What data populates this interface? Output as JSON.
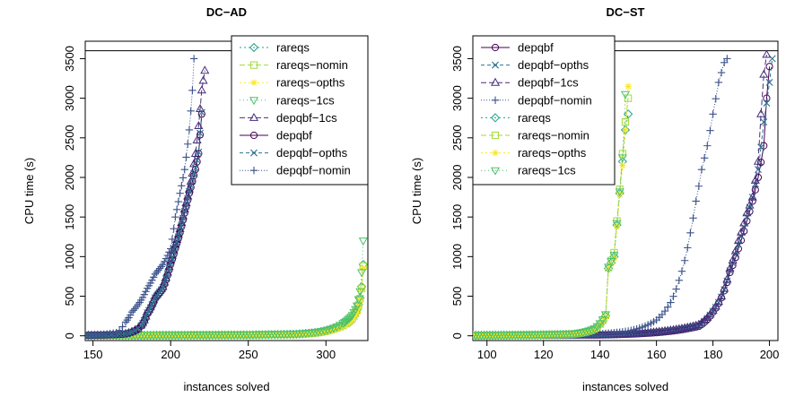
{
  "chart_data": [
    {
      "type": "line",
      "title": "DC−AD",
      "xlabel": "instances solved",
      "ylabel": "CPU time (s)",
      "xlim": [
        145,
        327
      ],
      "ylim": [
        -60,
        3720
      ],
      "xticks": [
        150,
        200,
        250,
        300
      ],
      "yticks": [
        0,
        500,
        1000,
        1500,
        2000,
        2500,
        3000,
        3500
      ],
      "timeout_line": 3600,
      "legend_position": "top-right",
      "series": [
        {
          "name": "rareqs",
          "color": "#1fa187",
          "marker": "diamond",
          "dash": "2,3",
          "x": [
            145,
            200,
            250,
            280,
            295,
            305,
            312,
            317,
            320,
            322,
            323,
            324
          ],
          "y": [
            5,
            8,
            12,
            20,
            45,
            90,
            150,
            230,
            330,
            480,
            620,
            900
          ]
        },
        {
          "name": "rareqs−nomin",
          "color": "#a0da39",
          "marker": "square",
          "dash": "6,3",
          "x": [
            145,
            200,
            250,
            280,
            295,
            305,
            312,
            317,
            320,
            322,
            323,
            324
          ],
          "y": [
            5,
            8,
            12,
            18,
            40,
            85,
            140,
            220,
            320,
            470,
            600,
            880
          ]
        },
        {
          "name": "rareqs−opths",
          "color": "#fde725",
          "marker": "star",
          "dash": "2,3",
          "x": [
            145,
            200,
            250,
            280,
            295,
            305,
            312,
            317,
            320,
            322,
            323,
            324
          ],
          "y": [
            5,
            7,
            10,
            16,
            35,
            75,
            130,
            210,
            300,
            450,
            580,
            850
          ]
        },
        {
          "name": "rareqs−1cs",
          "color": "#4ac16d",
          "marker": "triangle-down",
          "dash": "1,3",
          "x": [
            145,
            200,
            250,
            280,
            295,
            305,
            312,
            317,
            320,
            322,
            323,
            324
          ],
          "y": [
            6,
            9,
            13,
            22,
            50,
            100,
            170,
            260,
            380,
            560,
            800,
            1200
          ]
        },
        {
          "name": "depqbf−1cs",
          "color": "#472d7b",
          "marker": "triangle-up",
          "dash": "6,3",
          "x": [
            145,
            170,
            180,
            185,
            190,
            195,
            200,
            203,
            206,
            209,
            212,
            214,
            216,
            218,
            220,
            222
          ],
          "y": [
            5,
            25,
            110,
            300,
            500,
            620,
            950,
            1150,
            1350,
            1600,
            1850,
            2050,
            2300,
            2650,
            3100,
            3350
          ]
        },
        {
          "name": "depqbf",
          "color": "#440154",
          "marker": "circle",
          "dash": "",
          "x": [
            145,
            170,
            180,
            185,
            190,
            195,
            200,
            203,
            206,
            209,
            212,
            214,
            216,
            218,
            220
          ],
          "y": [
            5,
            20,
            100,
            280,
            470,
            600,
            900,
            1100,
            1300,
            1550,
            1800,
            1950,
            2100,
            2300,
            2800
          ]
        },
        {
          "name": "depqbf−opths",
          "color": "#2c728e",
          "marker": "x",
          "dash": "4,3",
          "x": [
            145,
            170,
            180,
            185,
            190,
            195,
            200,
            203,
            206,
            209,
            212,
            214,
            216,
            218,
            220
          ],
          "y": [
            5,
            22,
            105,
            290,
            480,
            610,
            920,
            1120,
            1320,
            1570,
            1820,
            1980,
            2120,
            2320,
            2820
          ]
        },
        {
          "name": "depqbf−nomin",
          "color": "#3b528b",
          "marker": "plus",
          "dash": "1,2",
          "x": [
            145,
            165,
            170,
            175,
            180,
            185,
            190,
            195,
            200,
            203,
            206,
            209,
            212,
            214,
            215
          ],
          "y": [
            5,
            40,
            150,
            300,
            420,
            600,
            780,
            900,
            1100,
            1500,
            1800,
            2100,
            2600,
            3100,
            3500
          ]
        }
      ]
    },
    {
      "type": "line",
      "title": "DC−ST",
      "xlabel": "instances solved",
      "ylabel": "CPU time (s)",
      "xlim": [
        95,
        203
      ],
      "ylim": [
        -60,
        3720
      ],
      "xticks": [
        100,
        120,
        140,
        160,
        180,
        200
      ],
      "yticks": [
        0,
        500,
        1000,
        1500,
        2000,
        2500,
        3000,
        3500
      ],
      "timeout_line": 3600,
      "legend_position": "top-left",
      "series": [
        {
          "name": "depqbf",
          "color": "#440154",
          "marker": "circle",
          "dash": "",
          "x": [
            95,
            140,
            160,
            175,
            180,
            183,
            186,
            189,
            192,
            194,
            196,
            198,
            199,
            200
          ],
          "y": [
            5,
            10,
            40,
            120,
            300,
            480,
            800,
            1100,
            1450,
            1700,
            2000,
            2400,
            3000,
            3400
          ]
        },
        {
          "name": "depqbf−opths",
          "color": "#2c728e",
          "marker": "x",
          "dash": "4,3",
          "x": [
            95,
            140,
            160,
            175,
            180,
            183,
            186,
            189,
            192,
            194,
            196,
            198,
            200,
            201
          ],
          "y": [
            5,
            10,
            45,
            130,
            310,
            490,
            820,
            1150,
            1500,
            1750,
            2100,
            2700,
            3200,
            3500
          ]
        },
        {
          "name": "depqbf−1cs",
          "color": "#472d7b",
          "marker": "triangle-up",
          "dash": "6,3",
          "x": [
            95,
            140,
            160,
            175,
            180,
            183,
            186,
            189,
            192,
            194,
            196,
            197,
            198,
            199
          ],
          "y": [
            5,
            10,
            50,
            140,
            320,
            500,
            850,
            1200,
            1550,
            1750,
            2200,
            2800,
            3300,
            3550
          ]
        },
        {
          "name": "depqbf−nomin",
          "color": "#3b528b",
          "marker": "plus",
          "dash": "1,2",
          "x": [
            95,
            130,
            150,
            160,
            165,
            168,
            170,
            172,
            174,
            176,
            178,
            180,
            182,
            184,
            185
          ],
          "y": [
            5,
            10,
            60,
            200,
            420,
            700,
            950,
            1300,
            1700,
            2100,
            2400,
            2800,
            3200,
            3450,
            3500
          ]
        },
        {
          "name": "rareqs",
          "color": "#1fa187",
          "marker": "diamond",
          "dash": "2,3",
          "x": [
            95,
            130,
            138,
            142,
            143,
            145,
            146,
            147,
            148,
            149,
            150
          ],
          "y": [
            5,
            20,
            80,
            250,
            850,
            1000,
            1400,
            1800,
            2200,
            2600,
            2800
          ]
        },
        {
          "name": "rareqs−nomin",
          "color": "#a0da39",
          "marker": "square",
          "dash": "6,3",
          "x": [
            95,
            130,
            138,
            142,
            143,
            145,
            146,
            147,
            148,
            149,
            150
          ],
          "y": [
            5,
            20,
            85,
            260,
            860,
            1050,
            1450,
            1850,
            2300,
            2700,
            3000
          ]
        },
        {
          "name": "rareqs−opths",
          "color": "#fde725",
          "marker": "star",
          "dash": "2,3",
          "x": [
            95,
            130,
            138,
            142,
            143,
            145,
            146,
            147,
            148,
            149,
            150
          ],
          "y": [
            5,
            18,
            75,
            240,
            840,
            980,
            1380,
            1780,
            2150,
            2600,
            3150
          ]
        },
        {
          "name": "rareqs−1cs",
          "color": "#4ac16d",
          "marker": "triangle-down",
          "dash": "1,3",
          "x": [
            95,
            130,
            138,
            142,
            143,
            145,
            146,
            147,
            148,
            149
          ],
          "y": [
            5,
            22,
            90,
            270,
            870,
            1020,
            1420,
            1820,
            2250,
            3050
          ]
        }
      ]
    }
  ]
}
